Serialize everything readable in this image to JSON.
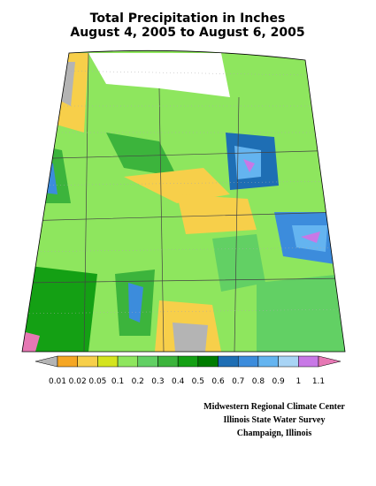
{
  "header": {
    "title": "Total Precipitation in Inches",
    "subtitle": "August 4, 2005 to August 6, 2005"
  },
  "legend": {
    "labels": [
      "0.01",
      "0.02",
      "0.05",
      "0.1",
      "0.2",
      "0.3",
      "0.4",
      "0.5",
      "0.6",
      "0.7",
      "0.8",
      "0.9",
      "1",
      "1.1"
    ],
    "colors": [
      "#b4b4b4",
      "#f5a623",
      "#f7cf4a",
      "#d4e41e",
      "#8ee65e",
      "#62d064",
      "#3cb43c",
      "#14a014",
      "#007c00",
      "#1e6eb4",
      "#3c8cdc",
      "#64b4f0",
      "#a8d4f5",
      "#c878e6",
      "#e678b4"
    ]
  },
  "credits": [
    "Midwestern Regional Climate Center",
    "Illinois State Water Survey",
    "Champaign, Illinois"
  ]
}
